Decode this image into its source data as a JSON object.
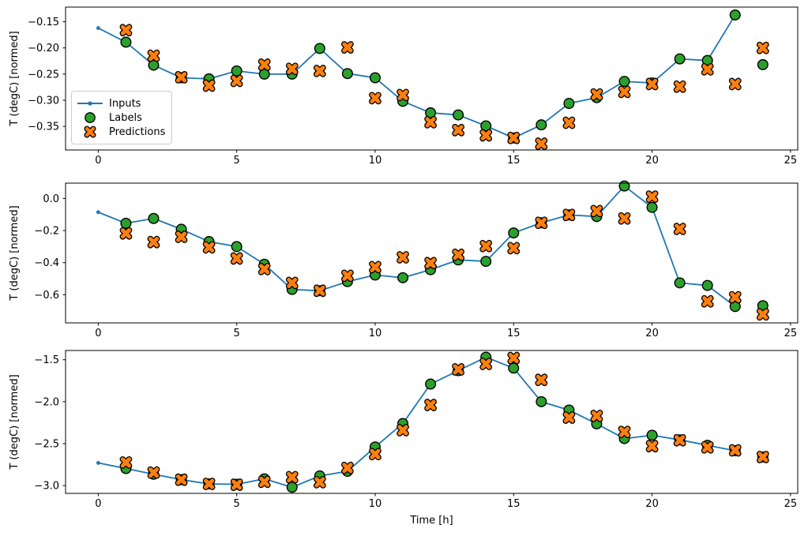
{
  "figure": {
    "xlabel": "Time [h]",
    "ylabel": "T (degC) [normed]",
    "colors": {
      "inputs_line": "#1f77b4",
      "labels_marker": "#2ca02c",
      "predictions_marker": "#ff7f0e",
      "marker_edge": "#000000",
      "spine": "#000000",
      "tick_text": "#000000",
      "legend_border": "#cccccc",
      "background": "#ffffff"
    },
    "legend": {
      "items": [
        {
          "label": "Inputs",
          "marker": "line-dot-icon",
          "color": "#1f77b4"
        },
        {
          "label": "Labels",
          "marker": "circle-icon",
          "color": "#2ca02c"
        },
        {
          "label": "Predictions",
          "marker": "x-icon",
          "color": "#ff7f0e"
        }
      ]
    }
  },
  "chart_data": [
    {
      "type": "line",
      "subplot": 1,
      "title": "",
      "xlabel": "",
      "ylabel": "T (degC) [normed]",
      "grid": false,
      "legend_position": "center-left",
      "xlim": [
        -1.18,
        25.26
      ],
      "ylim": [
        -0.395,
        -0.122
      ],
      "xticks": {
        "values": [
          0,
          5,
          10,
          15,
          20,
          25
        ],
        "labels": [
          "0",
          "5",
          "10",
          "15",
          "20",
          "25"
        ]
      },
      "yticks": {
        "values": [
          -0.15,
          -0.2,
          -0.25,
          -0.3,
          -0.35
        ],
        "labels": [
          "−0.15",
          "−0.20",
          "−0.25",
          "−0.30",
          "−0.35"
        ]
      },
      "series": [
        {
          "name": "Inputs",
          "style": "line-dot",
          "color": "#1f77b4",
          "x": [
            0,
            1,
            2,
            3,
            4,
            5,
            6,
            7,
            8,
            9,
            10,
            11,
            12,
            13,
            14,
            15,
            16,
            17,
            18,
            19,
            20,
            21,
            22,
            23
          ],
          "y": [
            -0.162,
            -0.189,
            -0.233,
            -0.257,
            -0.259,
            -0.244,
            -0.25,
            -0.25,
            -0.201,
            -0.249,
            -0.257,
            -0.302,
            -0.324,
            -0.328,
            -0.349,
            -0.372,
            -0.347,
            -0.306,
            -0.295,
            -0.264,
            -0.267,
            -0.221,
            -0.224,
            -0.137
          ]
        },
        {
          "name": "Labels",
          "style": "scatter-circle",
          "color": "#2ca02c",
          "edge": "#000000",
          "x": [
            1,
            2,
            3,
            4,
            5,
            6,
            7,
            8,
            9,
            10,
            11,
            12,
            13,
            14,
            15,
            16,
            17,
            18,
            19,
            20,
            21,
            22,
            23,
            24
          ],
          "y": [
            -0.189,
            -0.233,
            -0.257,
            -0.259,
            -0.244,
            -0.25,
            -0.25,
            -0.201,
            -0.249,
            -0.257,
            -0.302,
            -0.324,
            -0.328,
            -0.349,
            -0.372,
            -0.347,
            -0.306,
            -0.295,
            -0.264,
            -0.267,
            -0.221,
            -0.224,
            -0.137,
            -0.232
          ]
        },
        {
          "name": "Predictions",
          "style": "scatter-x",
          "color": "#ff7f0e",
          "edge": "#000000",
          "x": [
            1,
            2,
            3,
            4,
            5,
            6,
            7,
            8,
            9,
            10,
            11,
            12,
            13,
            14,
            15,
            16,
            17,
            18,
            19,
            20,
            21,
            22,
            23,
            24
          ],
          "y": [
            -0.166,
            -0.215,
            -0.256,
            -0.272,
            -0.263,
            -0.232,
            -0.24,
            -0.244,
            -0.199,
            -0.296,
            -0.29,
            -0.342,
            -0.357,
            -0.367,
            -0.372,
            -0.383,
            -0.343,
            -0.289,
            -0.284,
            -0.269,
            -0.274,
            -0.241,
            -0.269,
            -0.2
          ]
        }
      ]
    },
    {
      "type": "line",
      "subplot": 2,
      "title": "",
      "xlabel": "",
      "ylabel": "T (degC) [normed]",
      "grid": false,
      "xlim": [
        -1.18,
        25.26
      ],
      "ylim": [
        -0.775,
        0.095
      ],
      "xticks": {
        "values": [
          0,
          5,
          10,
          15,
          20,
          25
        ],
        "labels": [
          "0",
          "5",
          "10",
          "15",
          "20",
          "25"
        ]
      },
      "yticks": {
        "values": [
          0.0,
          -0.2,
          -0.4,
          -0.6
        ],
        "labels": [
          "0.0",
          "−0.2",
          "−0.4",
          "−0.6"
        ]
      },
      "series": [
        {
          "name": "Inputs",
          "style": "line-dot",
          "color": "#1f77b4",
          "x": [
            0,
            1,
            2,
            3,
            4,
            5,
            6,
            7,
            8,
            9,
            10,
            11,
            12,
            13,
            14,
            15,
            16,
            17,
            18,
            19,
            20,
            21,
            22,
            23
          ],
          "y": [
            -0.086,
            -0.155,
            -0.125,
            -0.192,
            -0.269,
            -0.3,
            -0.41,
            -0.567,
            -0.575,
            -0.518,
            -0.477,
            -0.494,
            -0.444,
            -0.383,
            -0.392,
            -0.215,
            -0.152,
            -0.103,
            -0.113,
            0.077,
            -0.056,
            -0.526,
            -0.542,
            -0.673
          ]
        },
        {
          "name": "Labels",
          "style": "scatter-circle",
          "color": "#2ca02c",
          "edge": "#000000",
          "x": [
            1,
            2,
            3,
            4,
            5,
            6,
            7,
            8,
            9,
            10,
            11,
            12,
            13,
            14,
            15,
            16,
            17,
            18,
            19,
            20,
            21,
            22,
            23,
            24
          ],
          "y": [
            -0.155,
            -0.125,
            -0.192,
            -0.269,
            -0.3,
            -0.41,
            -0.567,
            -0.575,
            -0.518,
            -0.477,
            -0.494,
            -0.444,
            -0.383,
            -0.392,
            -0.215,
            -0.152,
            -0.103,
            -0.113,
            0.077,
            -0.056,
            -0.526,
            -0.542,
            -0.673,
            -0.668
          ]
        },
        {
          "name": "Predictions",
          "style": "scatter-x",
          "color": "#ff7f0e",
          "edge": "#000000",
          "x": [
            1,
            2,
            3,
            4,
            5,
            6,
            7,
            8,
            9,
            10,
            11,
            12,
            13,
            14,
            15,
            16,
            17,
            18,
            19,
            20,
            21,
            22,
            23,
            24
          ],
          "y": [
            -0.218,
            -0.272,
            -0.239,
            -0.305,
            -0.374,
            -0.44,
            -0.526,
            -0.575,
            -0.482,
            -0.428,
            -0.367,
            -0.403,
            -0.351,
            -0.297,
            -0.31,
            -0.152,
            -0.103,
            -0.079,
            -0.125,
            0.011,
            -0.19,
            -0.641,
            -0.616,
            -0.722
          ]
        }
      ]
    },
    {
      "type": "line",
      "subplot": 3,
      "title": "",
      "xlabel": "Time [h]",
      "ylabel": "T (degC) [normed]",
      "grid": false,
      "xlim": [
        -1.18,
        25.26
      ],
      "ylim": [
        -3.093,
        -1.39
      ],
      "xticks": {
        "values": [
          0,
          5,
          10,
          15,
          20,
          25
        ],
        "labels": [
          "0",
          "5",
          "10",
          "15",
          "20",
          "25"
        ]
      },
      "yticks": {
        "values": [
          -1.5,
          -2.0,
          -2.5,
          -3.0
        ],
        "labels": [
          "−1.5",
          "−2.0",
          "−2.5",
          "−3.0"
        ]
      },
      "series": [
        {
          "name": "Inputs",
          "style": "line-dot",
          "color": "#1f77b4",
          "x": [
            0,
            1,
            2,
            3,
            4,
            5,
            6,
            7,
            8,
            9,
            10,
            11,
            12,
            13,
            14,
            15,
            16,
            17,
            18,
            19,
            20,
            21,
            22,
            23
          ],
          "y": [
            -2.73,
            -2.797,
            -2.865,
            -2.93,
            -2.98,
            -2.985,
            -2.92,
            -3.02,
            -2.885,
            -2.83,
            -2.54,
            -2.26,
            -1.79,
            -1.63,
            -1.47,
            -1.6,
            -2.0,
            -2.1,
            -2.264,
            -2.44,
            -2.4,
            -2.455,
            -2.52,
            -2.585
          ]
        },
        {
          "name": "Labels",
          "style": "scatter-circle",
          "color": "#2ca02c",
          "edge": "#000000",
          "x": [
            1,
            2,
            3,
            4,
            5,
            6,
            7,
            8,
            9,
            10,
            11,
            12,
            13,
            14,
            15,
            16,
            17,
            18,
            19,
            20,
            21,
            22,
            23,
            24
          ],
          "y": [
            -2.797,
            -2.865,
            -2.93,
            -2.98,
            -2.985,
            -2.92,
            -3.02,
            -2.885,
            -2.83,
            -2.54,
            -2.26,
            -1.79,
            -1.63,
            -1.47,
            -1.6,
            -2.0,
            -2.1,
            -2.264,
            -2.44,
            -2.4,
            -2.455,
            -2.52,
            -2.585,
            -2.66
          ]
        },
        {
          "name": "Predictions",
          "style": "scatter-x",
          "color": "#ff7f0e",
          "edge": "#000000",
          "x": [
            1,
            2,
            3,
            4,
            5,
            6,
            7,
            8,
            9,
            10,
            11,
            12,
            13,
            14,
            15,
            16,
            17,
            18,
            19,
            20,
            21,
            22,
            23,
            24
          ],
          "y": [
            -2.725,
            -2.845,
            -2.93,
            -2.98,
            -2.99,
            -2.955,
            -2.9,
            -2.96,
            -2.79,
            -2.625,
            -2.34,
            -2.04,
            -1.615,
            -1.55,
            -1.48,
            -1.74,
            -2.19,
            -2.17,
            -2.36,
            -2.53,
            -2.46,
            -2.545,
            -2.58,
            -2.66
          ]
        }
      ]
    }
  ]
}
